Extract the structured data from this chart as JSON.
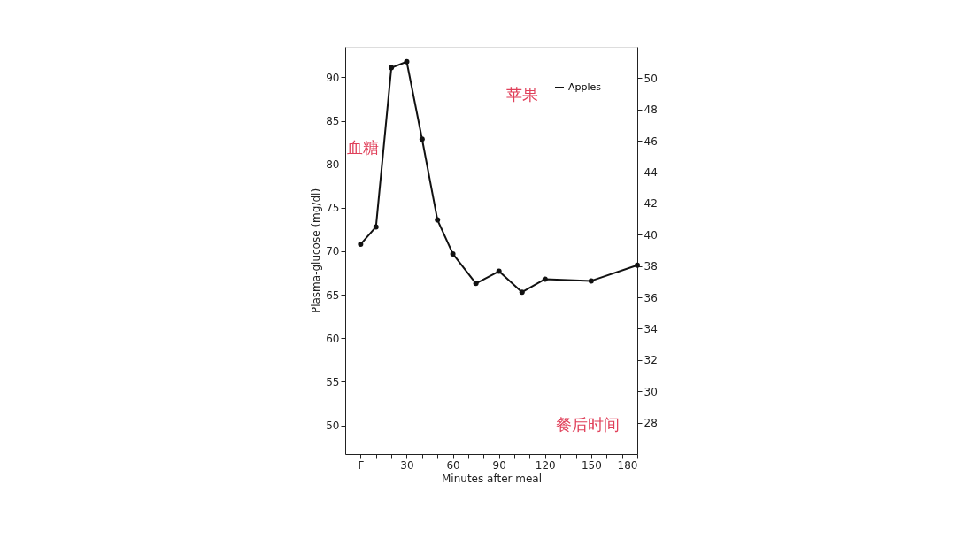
{
  "chart_data": {
    "type": "line",
    "xlabel": "Minutes after meal",
    "ylabel": "Plasma-glucose (mg/dl)",
    "x": [
      0,
      10,
      20,
      30,
      40,
      50,
      60,
      75,
      90,
      105,
      120,
      150,
      180
    ],
    "series": [
      {
        "name": "Apples",
        "color": "#111111",
        "values": [
          70.8,
          72.8,
          91.1,
          91.8,
          82.9,
          73.6,
          69.7,
          66.3,
          67.7,
          65.3,
          66.8,
          66.6,
          68.4
        ]
      }
    ],
    "xlim": [
      -10,
      180
    ],
    "xticks": [
      {
        "value": 0,
        "label": "F"
      },
      {
        "value": 10,
        "label": null
      },
      {
        "value": 20,
        "label": null
      },
      30,
      {
        "value": 40,
        "label": null
      },
      {
        "value": 50,
        "label": null
      },
      60,
      {
        "value": 70,
        "label": null
      },
      {
        "value": 80,
        "label": null
      },
      90,
      {
        "value": 100,
        "label": null
      },
      {
        "value": 110,
        "label": null
      },
      120,
      {
        "value": 130,
        "label": null
      },
      {
        "value": 140,
        "label": null
      },
      150,
      {
        "value": 160,
        "label": null
      },
      {
        "value": 170,
        "label": null
      },
      180
    ],
    "ylim": [
      46.7,
      93.5
    ],
    "yticks": [
      50,
      55,
      60,
      65,
      70,
      75,
      80,
      85,
      90
    ],
    "y2lim": [
      26,
      52
    ],
    "y2ticks": [
      28,
      30,
      32,
      34,
      36,
      38,
      40,
      42,
      44,
      46,
      48,
      50
    ],
    "annotations": [
      "血糖",
      "苹果",
      "餐后时间"
    ],
    "legend": "top right",
    "grid": false,
    "marker": "circle",
    "line_style": "solid"
  }
}
